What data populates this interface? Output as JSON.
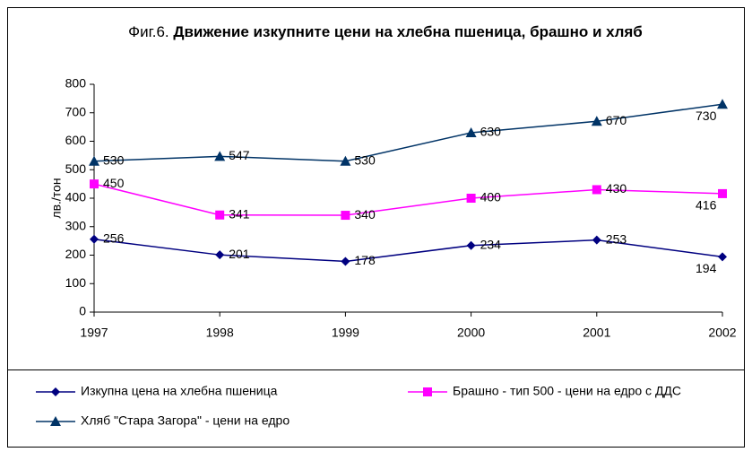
{
  "chart_data": {
    "type": "line",
    "figure_label": "Фиг.6.",
    "title": "Движение изкупните цени на хлебна пшеница, брашно и хляб",
    "y_label": "лв./тон",
    "categories": [
      "1997",
      "1998",
      "1999",
      "2000",
      "2001",
      "2002"
    ],
    "ylim": [
      0,
      800
    ],
    "yticks": [
      0,
      100,
      200,
      300,
      400,
      500,
      600,
      700,
      800
    ],
    "grid": false,
    "series": [
      {
        "name": "Изкупна цена на хлебна пшеница",
        "color": "#000080",
        "marker": "diamond",
        "values": [
          256,
          201,
          178,
          234,
          253,
          194
        ]
      },
      {
        "name": "Брашно - тип 500 - цени на едро с ДДС",
        "color": "#ff00ff",
        "marker": "square",
        "values": [
          450,
          341,
          340,
          400,
          430,
          416
        ]
      },
      {
        "name": "Хляб \"Стара Загора\" - цени на едро",
        "color": "#003366",
        "marker": "triangle",
        "values": [
          530,
          547,
          530,
          630,
          670,
          730
        ]
      }
    ]
  }
}
